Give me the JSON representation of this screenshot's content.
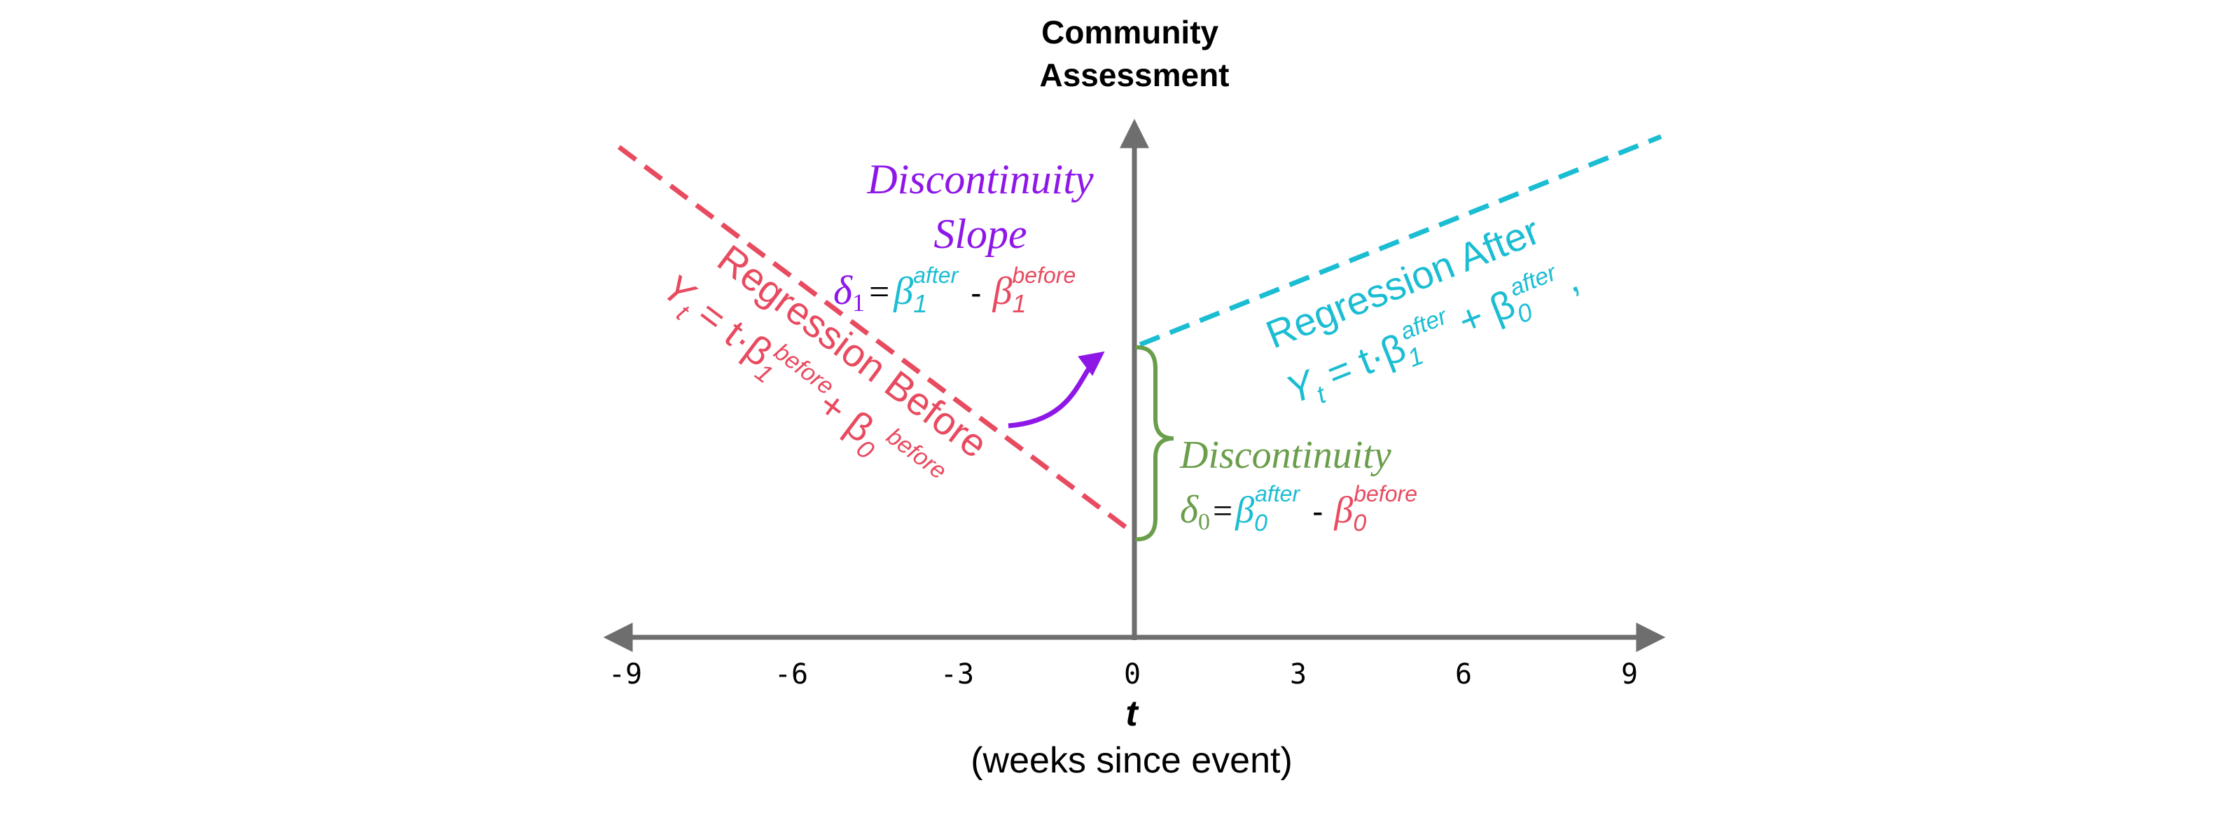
{
  "colors": {
    "axis": "#6e6e6e",
    "before": "#e84a5f",
    "after": "#1bbdd3",
    "slope": "#8e17e8",
    "discontinuity": "#6a9e4a",
    "text": "#000000"
  },
  "y_axis_title": [
    "Community",
    "Assessment"
  ],
  "x_axis": {
    "ticks": [
      "-9",
      "-6",
      "-3",
      "0",
      "3",
      "6",
      "9"
    ],
    "label": "t",
    "sublabel": "(weeks since event)"
  },
  "regression_before": {
    "title": "Regression Before",
    "formula": {
      "lhs": "Y",
      "lhs_sub": "t",
      "eq": " = t·β",
      "b1_sub": "1",
      "b1_sup": "before",
      "plus": "+ β",
      "b0_sub": "0",
      "b0_sup": "before"
    }
  },
  "regression_after": {
    "title": "Regression After",
    "formula": {
      "lhs": "Y",
      "lhs_sub": "t",
      "eq": " = t·β",
      "b1_sub": "1",
      "b1_sup": "after",
      "plus": " + β",
      "b0_sub": "0",
      "b0_sup": "after",
      "trail": ","
    }
  },
  "discontinuity_slope": {
    "title_line1": "Discontinuity",
    "title_line2": "Slope",
    "delta": "δ",
    "delta_sub": "1",
    "eq": "=",
    "beta": "β",
    "beta_sub": "1",
    "after_sup": "after",
    "minus": "-",
    "before_sup": "before"
  },
  "discontinuity_level": {
    "title": "Discontinuity",
    "delta": "δ",
    "delta_sub": "0",
    "eq": "=",
    "beta": "β",
    "beta_sub": "0",
    "after_sup": "after",
    "minus": "-",
    "before_sup": "before"
  }
}
